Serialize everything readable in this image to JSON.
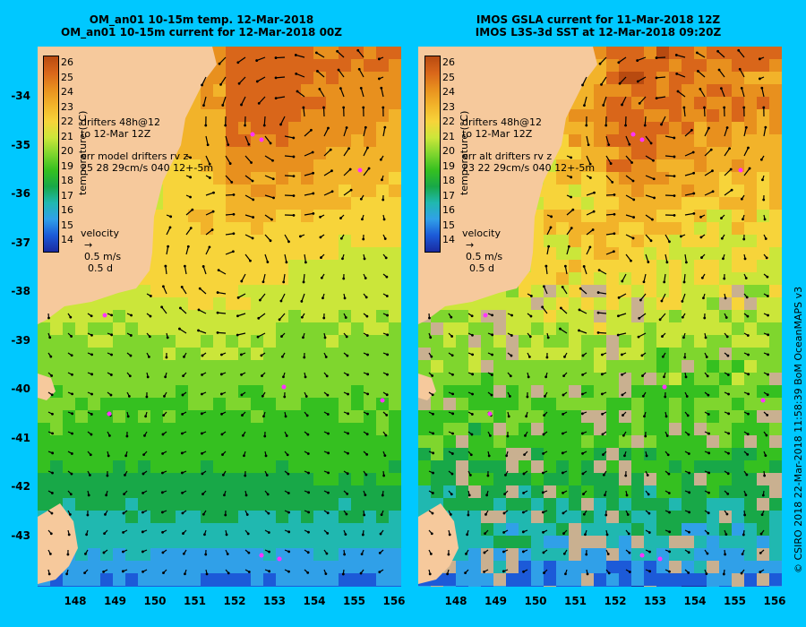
{
  "colors": {
    "background": "#00c8ff",
    "land": "#f6c99c",
    "cloud": "#c9b090",
    "drifter": "#ff33ff"
  },
  "panels": [
    {
      "title_line1": "OM_an01 10-15m temp. 12-Mar-2018",
      "title_line2": "OM_an01 10-15m current for 12-Mar-2018 00Z",
      "drifters_line1": "drifters 48h@12",
      "drifters_line2": "to 12-Mar 12Z",
      "err_line1": "err model drifters rv z",
      "err_line2": "25 28 29cm/s 040 12+-5m",
      "cloud": false
    },
    {
      "title_line1": "IMOS GSLA current for 11-Mar-2018 12Z",
      "title_line2": "IMOS L3S-3d SST at 12-Mar-2018 09:20Z",
      "drifters_line1": "drifters 48h@12",
      "drifters_line2": "to 12-Mar 12Z",
      "err_line1": "err alt drifters rv z",
      "err_line2": "23 22 29cm/s 040 12+-5m",
      "cloud": true
    }
  ],
  "colorbar": {
    "label": "temperature (°C)",
    "ticks": [
      "26",
      "25",
      "24",
      "23",
      "22",
      "21",
      "20",
      "19",
      "18",
      "17",
      "16",
      "15",
      "14"
    ],
    "colors": [
      "#b84a10",
      "#d9661a",
      "#e8901e",
      "#f2b32a",
      "#f7d43a",
      "#cbe63a",
      "#7fd62e",
      "#35c020",
      "#18a848",
      "#20b8b0",
      "#30a0e8",
      "#1c5ad8",
      "#1a2aa0"
    ]
  },
  "velocity_legend": {
    "title": "velocity",
    "speed": "0.5 m/s",
    "duration": "0.5 d"
  },
  "y_axis": [
    "-34",
    "-35",
    "-36",
    "-37",
    "-38",
    "-39",
    "-40",
    "-41",
    "-42",
    "-43"
  ],
  "x_axis": [
    "148",
    "149",
    "150",
    "151",
    "152",
    "153",
    "154",
    "155",
    "156"
  ],
  "credit": "© CSIRO 2018   22-Mar-2018 11:58:39 BoM OceanMAPS v3"
}
